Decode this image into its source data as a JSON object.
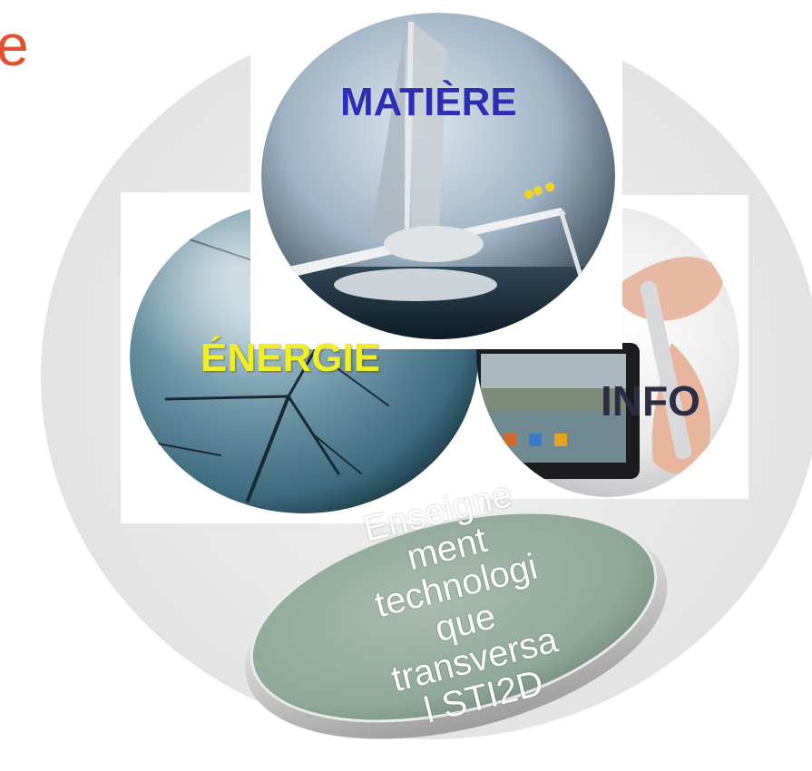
{
  "corner": {
    "letter": "e"
  },
  "spheres": {
    "matiere": {
      "label": "MATIÈRE",
      "icon": "sailing-trimaran-image"
    },
    "energie": {
      "label": "ÉNERGIE",
      "icon": "wind-turbines-image"
    },
    "info": {
      "label": "INFO",
      "icon": "tablet-touch-image"
    }
  },
  "lens": {
    "lines": [
      "Enseigne",
      "ment",
      "technologi",
      "que",
      "transversa",
      "l STI2D"
    ]
  },
  "colors": {
    "matiere_label": "#2b2fb5",
    "energie_label": "#f2ee24",
    "info_label": "#2c2c44",
    "corner_letter": "#e2502e",
    "lens_surface": "#8fa99a"
  }
}
